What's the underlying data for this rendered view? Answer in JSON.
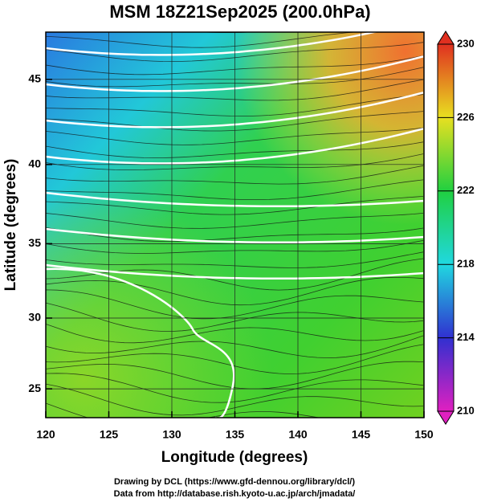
{
  "map": {
    "title": "MSM 18Z21Sep2025 (200.0hPa)",
    "xlabel": "Longitude (degrees)",
    "ylabel": "Latitude  (degrees)",
    "xlim": [
      120,
      150
    ],
    "ylim": [
      22.9,
      47.6
    ],
    "xticks": [
      120,
      125,
      130,
      135,
      140,
      145,
      150
    ],
    "yticks": [
      25,
      30,
      35,
      40,
      45
    ],
    "projection": "mercator",
    "colorbar": {
      "lim": [
        210,
        230
      ],
      "ticks": [
        210,
        214,
        218,
        222,
        226,
        230
      ],
      "colors": [
        "#e020c0",
        "#3030d0",
        "#20d8e0",
        "#20d040",
        "#e8e020",
        "#e03020"
      ]
    },
    "credits": [
      "Drawing by DCL (https://www.gfd-dennou.org/library/dcl/)",
      "Data from http://database.rish.kyoto-u.ac.jp/arch/jmadata/"
    ]
  }
}
